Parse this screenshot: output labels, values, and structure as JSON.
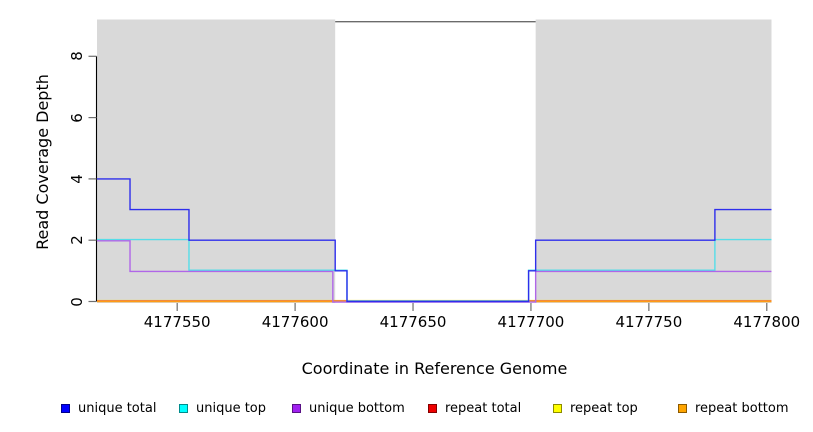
{
  "chart_data": {
    "type": "line",
    "step": true,
    "title": "",
    "xlabel": "Coordinate in Reference Genome",
    "ylabel": "Read Coverage Depth",
    "xlim": [
      4177516,
      4177802
    ],
    "ylim": [
      0,
      9.2
    ],
    "x_ticks": [
      4177550,
      4177600,
      4177650,
      4177700,
      4177750,
      4177800
    ],
    "y_ticks": [
      0,
      2,
      4,
      6,
      8
    ],
    "grid": false,
    "legend_position": "bottom",
    "background_color": "#ffffff",
    "shaded_regions": [
      {
        "name": "repeat-region-left",
        "start": 4177516,
        "end": 4177617,
        "color": "#d9d9d9"
      },
      {
        "name": "repeat-region-right",
        "start": 4177702,
        "end": 4177802,
        "color": "#d9d9d9"
      }
    ],
    "gap_boundary_line": {
      "x_start": 4177617,
      "x_end": 4177702,
      "y_value": 9.13,
      "color": "#6b6b6b"
    },
    "axis_color": "#000000",
    "tick_color": "#6e6e6e",
    "series": [
      {
        "name": "unique total",
        "color": "#0000ff",
        "line_color": "#2e2eec",
        "points": [
          [
            4177516,
            4
          ],
          [
            4177530,
            3
          ],
          [
            4177555,
            2
          ],
          [
            4177617,
            1
          ],
          [
            4177622,
            0
          ],
          [
            4177699,
            1
          ],
          [
            4177702,
            2
          ],
          [
            4177778,
            3
          ],
          [
            4177802,
            3
          ]
        ]
      },
      {
        "name": "unique top",
        "color": "#00ffff",
        "line_color": "#55dde8",
        "points": [
          [
            4177516,
            2
          ],
          [
            4177555,
            1
          ],
          [
            4177622,
            0
          ],
          [
            4177699,
            1
          ],
          [
            4177778,
            2
          ],
          [
            4177802,
            2
          ]
        ]
      },
      {
        "name": "unique bottom",
        "color": "#a020f0",
        "line_color": "#b066e8",
        "points": [
          [
            4177516,
            2
          ],
          [
            4177530,
            1
          ],
          [
            4177616,
            0
          ],
          [
            4177702,
            1
          ],
          [
            4177802,
            1
          ]
        ]
      },
      {
        "name": "repeat total",
        "color": "#ee0000",
        "line_color": "#e85555",
        "points": [
          [
            4177516,
            0
          ],
          [
            4177802,
            0
          ]
        ]
      },
      {
        "name": "repeat top",
        "color": "#ffff00",
        "line_color": "#f2e23a",
        "points": [
          [
            4177516,
            0
          ],
          [
            4177802,
            0
          ]
        ]
      },
      {
        "name": "repeat bottom",
        "color": "#ffa500",
        "line_color": "#ff9c15",
        "points": [
          [
            4177516,
            0
          ],
          [
            4177802,
            0
          ]
        ]
      }
    ]
  }
}
